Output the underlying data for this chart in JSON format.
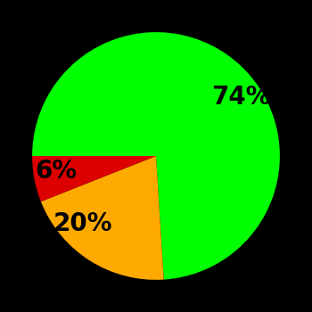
{
  "slices": [
    74,
    20,
    6
  ],
  "labels": [
    "74%",
    "20%",
    "6%"
  ],
  "colors": [
    "#00ff00",
    "#ffaa00",
    "#dd0000"
  ],
  "background_color": "#000000",
  "startangle": 180,
  "text_color": "#000000",
  "font_size": 20,
  "font_weight": "bold",
  "counterclock": false,
  "labeldistance": 0.65
}
